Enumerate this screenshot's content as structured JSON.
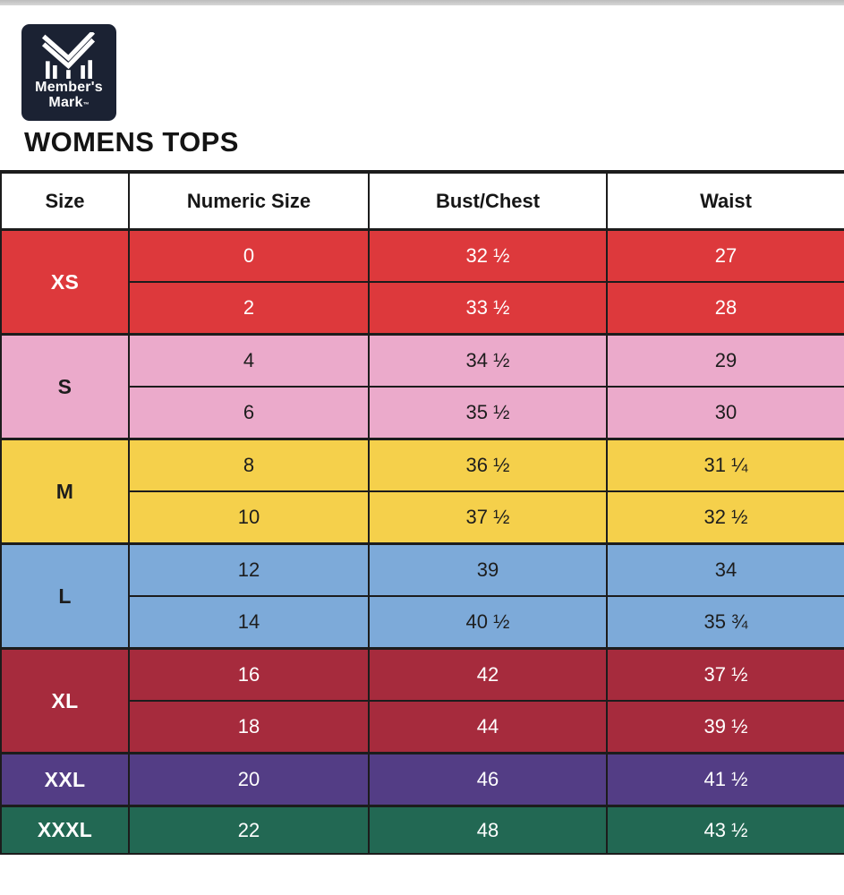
{
  "title": "WOMENS TOPS",
  "logo": {
    "brand_line1": "Member's",
    "brand_line2": "Mark",
    "tm": "™",
    "tile_color": "#1b2233",
    "mark_color": "#ffffff"
  },
  "table": {
    "headers": [
      "Size",
      "Numeric Size",
      "Bust/Chest",
      "Waist"
    ],
    "border_color": "#1c1c1c",
    "groups": [
      {
        "size": "XS",
        "bg": "#dd393c",
        "fg": "#ffffff",
        "rows": [
          [
            "0",
            "32 ½",
            "27"
          ],
          [
            "2",
            "33 ½",
            "28"
          ]
        ]
      },
      {
        "size": "S",
        "bg": "#ebaacb",
        "fg": "#1d1d1d",
        "rows": [
          [
            "4",
            "34 ½",
            "29"
          ],
          [
            "6",
            "35 ½",
            "30"
          ]
        ]
      },
      {
        "size": "M",
        "bg": "#f5d04b",
        "fg": "#1d1d1d",
        "rows": [
          [
            "8",
            "36 ½",
            "31 ¼"
          ],
          [
            "10",
            "37 ½",
            "32 ½"
          ]
        ]
      },
      {
        "size": "L",
        "bg": "#7daad9",
        "fg": "#1d1d1d",
        "rows": [
          [
            "12",
            "39",
            "34"
          ],
          [
            "14",
            "40 ½",
            "35 ¾"
          ]
        ]
      },
      {
        "size": "XL",
        "bg": "#a62b3d",
        "fg": "#ffffff",
        "rows": [
          [
            "16",
            "42",
            "37 ½"
          ],
          [
            "18",
            "44",
            "39 ½"
          ]
        ]
      },
      {
        "size": "XXL",
        "bg": "#533d85",
        "fg": "#ffffff",
        "rows": [
          [
            "20",
            "46",
            "41 ½"
          ]
        ]
      },
      {
        "size": "XXXL",
        "bg": "#226853",
        "fg": "#ffffff",
        "rows": [
          [
            "22",
            "48",
            "43 ½"
          ]
        ]
      }
    ]
  },
  "chart_data": {
    "type": "table",
    "title": "WOMENS TOPS",
    "columns": [
      "Size",
      "Numeric Size",
      "Bust/Chest",
      "Waist"
    ],
    "rows": [
      [
        "XS",
        "0",
        "32 ½",
        "27"
      ],
      [
        "XS",
        "2",
        "33 ½",
        "28"
      ],
      [
        "S",
        "4",
        "34 ½",
        "29"
      ],
      [
        "S",
        "6",
        "35 ½",
        "30"
      ],
      [
        "M",
        "8",
        "36 ½",
        "31 ¼"
      ],
      [
        "M",
        "10",
        "37 ½",
        "32 ½"
      ],
      [
        "L",
        "12",
        "39",
        "34"
      ],
      [
        "L",
        "14",
        "40 ½",
        "35 ¾"
      ],
      [
        "XL",
        "16",
        "42",
        "37 ½"
      ],
      [
        "XL",
        "18",
        "44",
        "39 ½"
      ],
      [
        "XXL",
        "20",
        "46",
        "41 ½"
      ],
      [
        "XXXL",
        "22",
        "48",
        "43 ½"
      ]
    ]
  }
}
